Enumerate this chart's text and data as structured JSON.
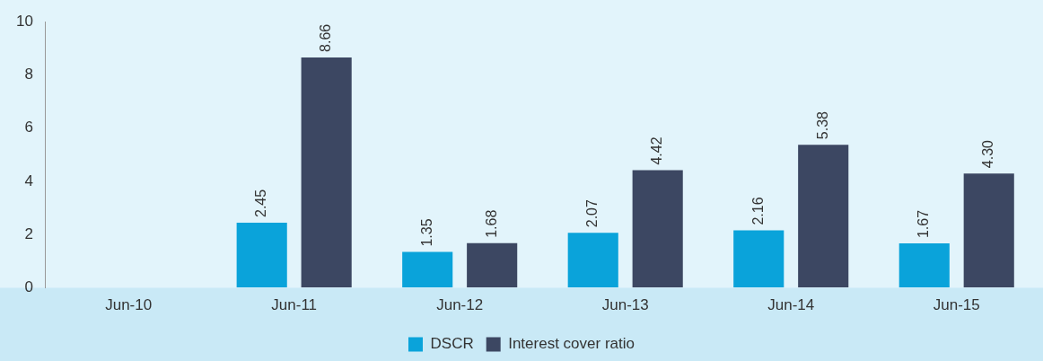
{
  "chart_data": {
    "type": "bar",
    "categories": [
      "Jun-10",
      "Jun-11",
      "Jun-12",
      "Jun-13",
      "Jun-14",
      "Jun-15"
    ],
    "series": [
      {
        "name": "DSCR",
        "color": "#0aa3da",
        "values": [
          null,
          2.45,
          1.35,
          2.07,
          2.16,
          1.67
        ],
        "value_labels": [
          null,
          "2.45",
          "1.35",
          "2.07",
          "2.16",
          "1.67"
        ]
      },
      {
        "name": "Interest cover ratio",
        "color": "#3c4762",
        "values": [
          null,
          8.66,
          1.68,
          4.42,
          5.38,
          4.3
        ],
        "value_labels": [
          null,
          "8.66",
          "1.68",
          "4.42",
          "5.38",
          "4.30"
        ]
      }
    ],
    "ylim": [
      0,
      10
    ],
    "yticks": [
      0,
      2,
      4,
      6,
      8,
      10
    ],
    "grid": false,
    "legend": "bottom"
  }
}
